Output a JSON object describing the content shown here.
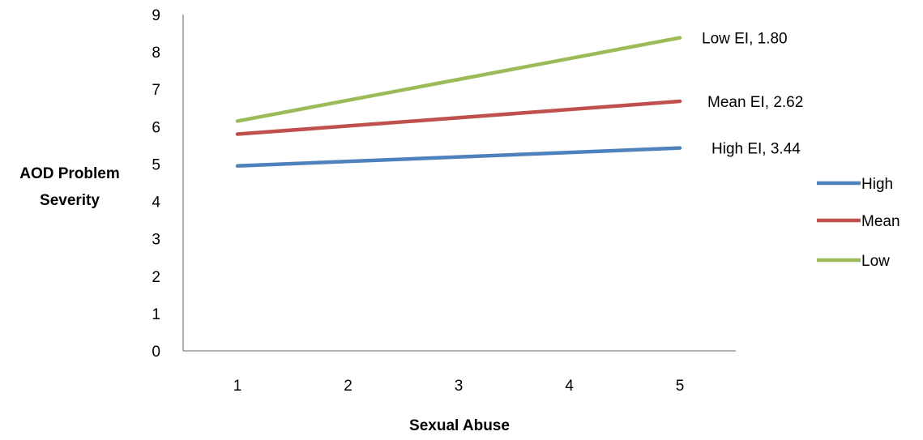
{
  "chart_data": {
    "type": "line",
    "xlabel": "Sexual Abuse",
    "ylabel_lines": [
      "AOD Problem",
      "Severity"
    ],
    "categories": [
      "1",
      "2",
      "3",
      "4",
      "5"
    ],
    "x": [
      1,
      5
    ],
    "ylim": [
      0,
      9
    ],
    "yticks": [
      "0",
      "1",
      "2",
      "3",
      "4",
      "5",
      "6",
      "7",
      "8",
      "9"
    ],
    "grid": false,
    "legend_position": "right",
    "series": [
      {
        "name": "High",
        "color": "#4f81bd",
        "values": [
          4.95,
          5.43
        ],
        "annotation": "High EI, 3.44"
      },
      {
        "name": "Mean",
        "color": "#c0504d",
        "values": [
          5.8,
          6.68
        ],
        "annotation": "Mean EI, 2.62"
      },
      {
        "name": "Low",
        "color": "#9bbb59",
        "values": [
          6.15,
          8.38
        ],
        "annotation": "Low EI, 1.80"
      }
    ]
  }
}
